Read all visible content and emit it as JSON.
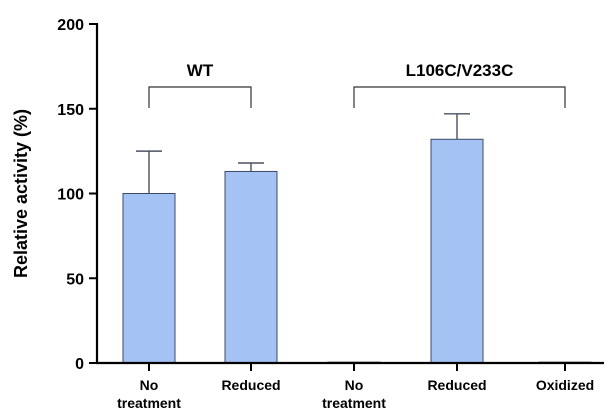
{
  "chart_data": {
    "type": "bar",
    "title": "",
    "xlabel": "",
    "ylabel": "Relative activity (%)",
    "ylim": [
      0,
      200
    ],
    "yticks": [
      0,
      50,
      100,
      150,
      200
    ],
    "grid": false,
    "categories": [
      [
        "No",
        "treatment"
      ],
      [
        "Reduced"
      ],
      [
        "No",
        "treatment"
      ],
      [
        "Reduced"
      ],
      [
        "Oxidized"
      ]
    ],
    "values": [
      100,
      113,
      0.5,
      132,
      0.5
    ],
    "errors": [
      25,
      5,
      0,
      15,
      0
    ],
    "groups": [
      {
        "label": "WT",
        "from": 0,
        "to": 1
      },
      {
        "label": "L106C/V233C",
        "from": 2,
        "to": 4
      }
    ],
    "colors": {
      "bar_fill": "#a4c2f4",
      "bar_stroke": "#3c4a66"
    }
  }
}
